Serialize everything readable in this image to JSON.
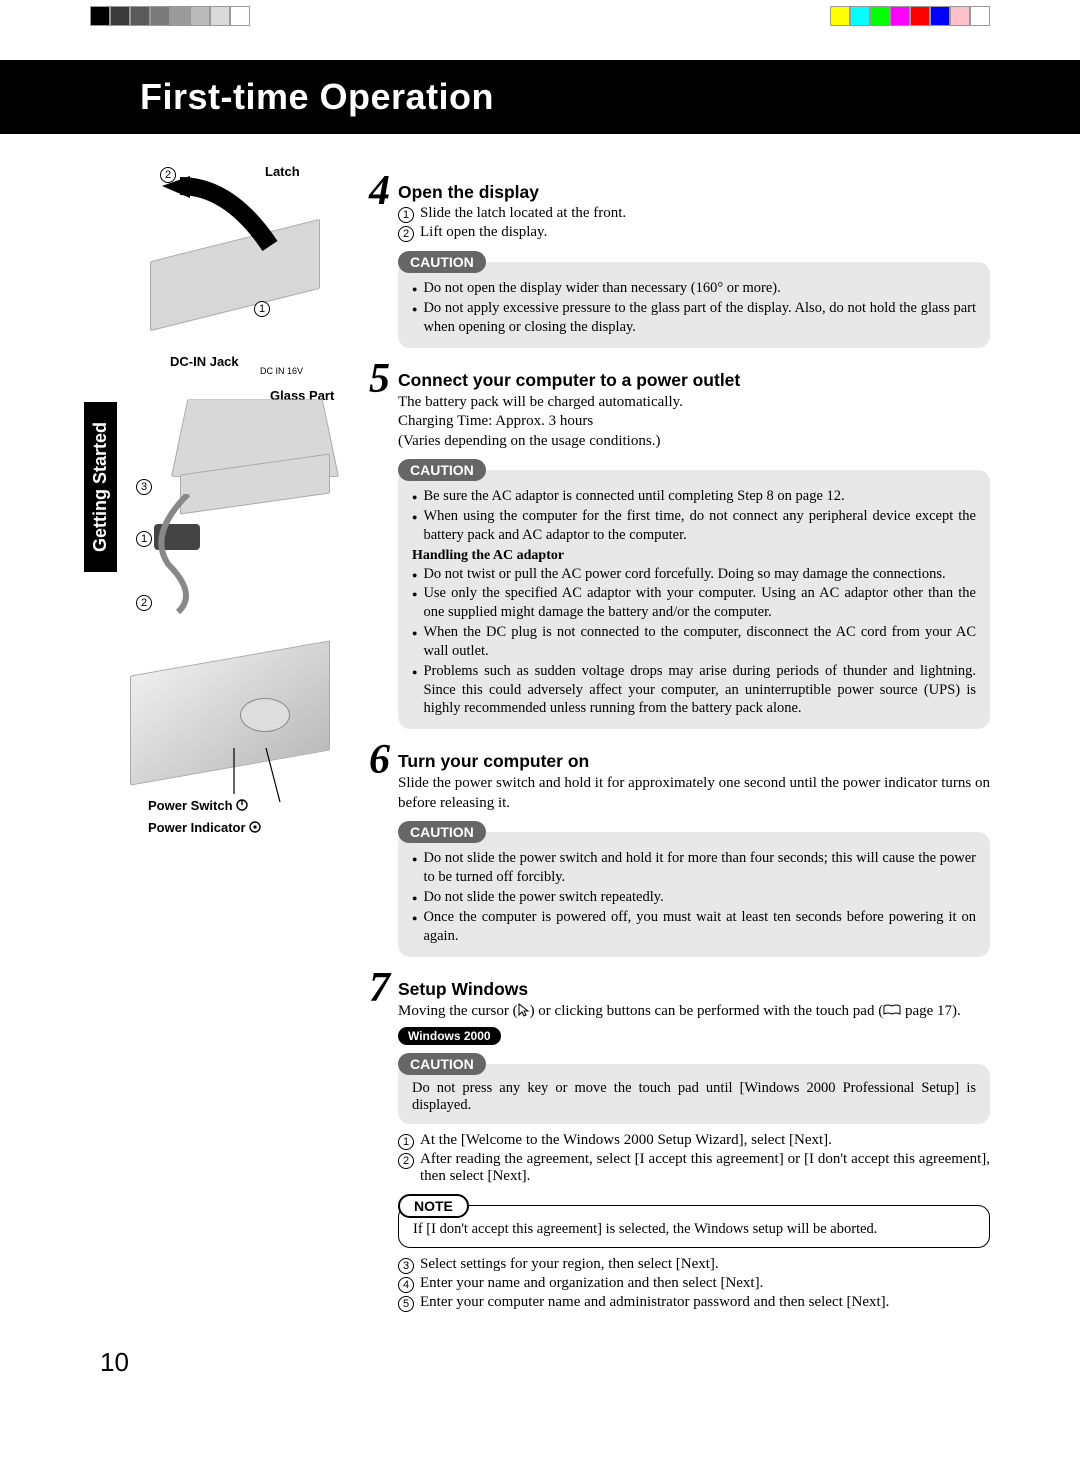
{
  "registration": {
    "left_colors": [
      "#000000",
      "#3a3a3a",
      "#5a5a5a",
      "#7a7a7a",
      "#9a9a9a",
      "#bababa",
      "#dadada",
      "#ffffff"
    ],
    "right_colors": [
      "#ffff00",
      "#00ffff",
      "#00ff00",
      "#ff00ff",
      "#ff0000",
      "#0000ff",
      "#ffc0cb",
      "#ffffff"
    ]
  },
  "title": "First-time Operation",
  "side_tab": "Getting Started",
  "page_number": "10",
  "figures": {
    "fig1": {
      "labels": {
        "latch": "Latch",
        "n1": "1",
        "n2": "2"
      }
    },
    "fig2": {
      "labels": {
        "dc_in_jack": "DC-IN Jack",
        "dc_in_16v": "DC IN 16V",
        "glass_part": "Glass Part",
        "n1": "1",
        "n2": "2",
        "n3": "3"
      }
    },
    "fig3": {
      "labels": {
        "power_switch": "Power Switch",
        "power_indicator": "Power Indicator"
      }
    }
  },
  "steps": {
    "s4": {
      "num": "4",
      "title": "Open the display",
      "items": [
        {
          "n": "1",
          "t": "Slide the latch located at the front."
        },
        {
          "n": "2",
          "t": "Lift open the display."
        }
      ],
      "caution_label": "CAUTION",
      "caution": [
        "Do not open the display wider than necessary (160° or more).",
        "Do not apply excessive pressure to the glass part of the display.  Also, do not hold the glass part when opening or closing the display."
      ]
    },
    "s5": {
      "num": "5",
      "title": "Connect your computer to a power outlet",
      "intro": [
        "The battery pack will be charged automatically.",
        "Charging Time: Approx. 3 hours",
        "(Varies depending on the usage conditions.)"
      ],
      "caution_label": "CAUTION",
      "caution_a": [
        "Be sure the AC adaptor is connected until completing Step 8 on page 12.",
        "When using the computer for the first time, do not connect any peripheral device except the battery pack and AC adaptor to the computer."
      ],
      "subhead": "Handling the AC adaptor",
      "caution_b": [
        "Do not twist or pull the AC power cord forcefully.  Doing so may damage the connections.",
        "Use only the specified AC adaptor with your computer.  Using an AC adaptor other than the one supplied might damage the battery and/or the computer.",
        "When the DC plug is not connected to the computer, disconnect the AC cord from your AC wall outlet.",
        "Problems such as sudden voltage drops may arise during periods of thunder and lightning.  Since this could adversely affect your computer, an uninterruptible power source (UPS) is highly recommended unless running from the battery pack alone."
      ]
    },
    "s6": {
      "num": "6",
      "title": "Turn your computer on",
      "intro": "Slide the power switch and hold it for approximately one second until the power indicator turns on before releasing it.",
      "caution_label": "CAUTION",
      "caution": [
        "Do not slide the power switch and hold it for more than four seconds; this will cause the power to be turned off forcibly.",
        "Do not slide the power switch repeatedly.",
        "Once the computer is powered off, you must wait at least ten seconds before powering it on again."
      ]
    },
    "s7": {
      "num": "7",
      "title": "Setup Windows",
      "intro_a": "Moving the cursor (",
      "intro_b": ") or clicking buttons can be performed with the touch pad (",
      "intro_c": " page 17).",
      "os_badge": "Windows 2000",
      "caution_label": "CAUTION",
      "caution_text": "Do not press any key or move the touch pad until [Windows 2000 Professional Setup] is displayed.",
      "items_a": [
        {
          "n": "1",
          "t": "At the [Welcome to the Windows 2000 Setup Wizard], select [Next]."
        },
        {
          "n": "2",
          "t": "After reading the agreement, select [I accept this agreement] or [I don't accept this agreement], then select [Next]."
        }
      ],
      "note_label": "NOTE",
      "note_text": "If [I don't accept this agreement] is selected, the Windows setup will be aborted.",
      "items_b": [
        {
          "n": "3",
          "t": "Select settings for your region, then select [Next]."
        },
        {
          "n": "4",
          "t": "Enter your name and organization and then select [Next]."
        },
        {
          "n": "5",
          "t": "Enter your computer name and administrator password and then select [Next]."
        }
      ]
    }
  }
}
